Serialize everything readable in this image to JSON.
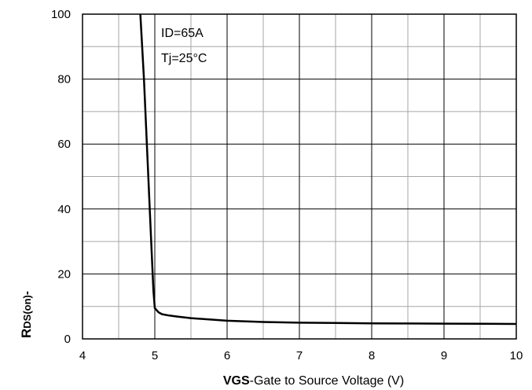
{
  "chart_data": {
    "type": "line",
    "title": "",
    "xlabel_bold": "VGS",
    "xlabel_rest": "-Gate to Source Voltage (V)",
    "ylabel_bold": "R",
    "ylabel_sub": "DS(on)",
    "ylabel_rest": "-",
    "xlim": [
      4,
      10
    ],
    "ylim": [
      0,
      100
    ],
    "x_ticks": [
      4,
      5,
      6,
      7,
      8,
      9,
      10
    ],
    "y_ticks": [
      0,
      20,
      40,
      60,
      80,
      100
    ],
    "x_minor_step": 0.5,
    "y_minor_step": 10,
    "grid": true,
    "annotations": [
      "ID=65A",
      "Tj=25°C"
    ],
    "series": [
      {
        "x": [
          4.8,
          4.85,
          4.9,
          4.95,
          4.98,
          5.0,
          5.05,
          5.1,
          5.2,
          5.3,
          5.5,
          6.0,
          6.5,
          7.0,
          7.5,
          8.0,
          8.5,
          9.0,
          9.5,
          10.0
        ],
        "y": [
          100,
          80,
          55,
          30,
          15,
          9.5,
          8.2,
          7.6,
          7.2,
          6.9,
          6.4,
          5.6,
          5.2,
          5.0,
          4.9,
          4.8,
          4.75,
          4.7,
          4.65,
          4.6
        ]
      }
    ]
  }
}
